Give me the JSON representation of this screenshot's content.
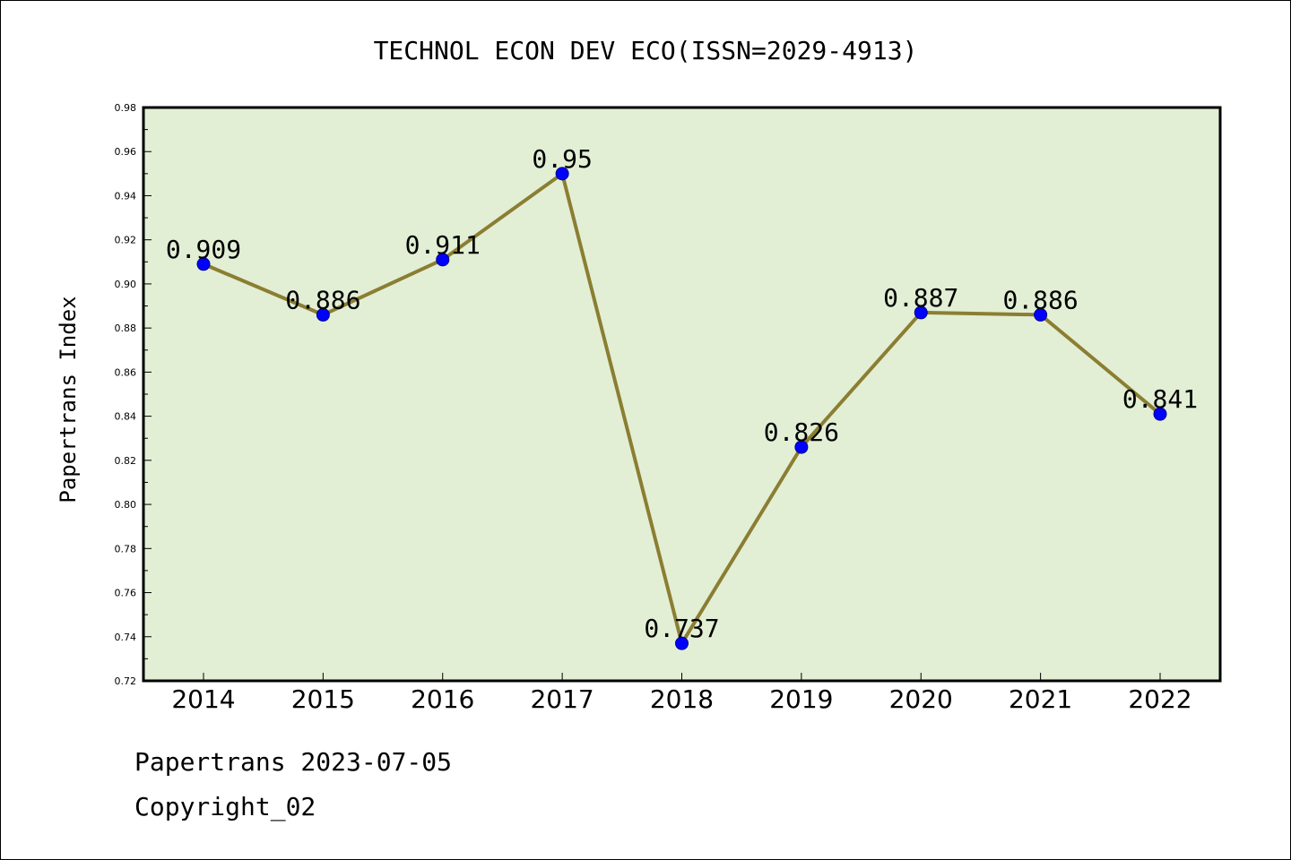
{
  "chart_data": {
    "type": "line",
    "title": "TECHNOL ECON DEV ECO(ISSN=2029-4913)",
    "xlabel": "",
    "ylabel": "Papertrans Index",
    "categories": [
      "2014",
      "2015",
      "2016",
      "2017",
      "2018",
      "2019",
      "2020",
      "2021",
      "2022"
    ],
    "values": [
      0.909,
      0.886,
      0.911,
      0.95,
      0.737,
      0.826,
      0.887,
      0.886,
      0.841
    ],
    "data_labels": [
      "0.909",
      "0.886",
      "0.911",
      "0.95",
      "0.737",
      "0.826",
      "0.887",
      "0.886",
      "0.841"
    ],
    "ylim": [
      0.72,
      0.98
    ],
    "yticks": [
      "0.72",
      "0.74",
      "0.76",
      "0.78",
      "0.80",
      "0.82",
      "0.84",
      "0.86",
      "0.88",
      "0.90",
      "0.92",
      "0.94",
      "0.96",
      "0.98"
    ],
    "grid": false,
    "colors": {
      "plot_background": "#e2efd5",
      "line": "#8b7e32",
      "marker": "#0000ff"
    }
  },
  "footer": {
    "line1": "Papertrans 2023-07-05",
    "line2": "Copyright_02"
  }
}
